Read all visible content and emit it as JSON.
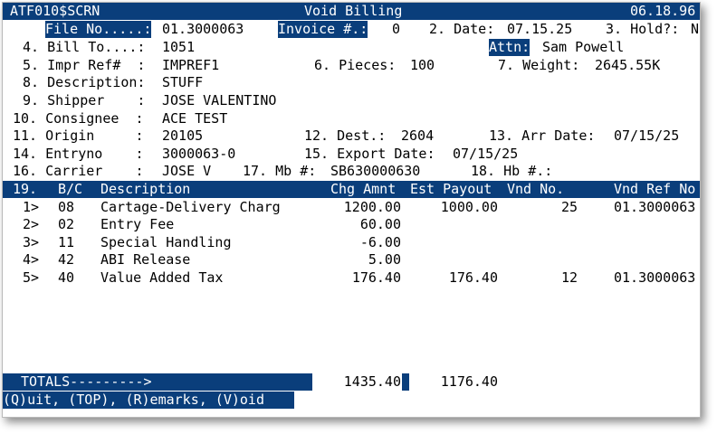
{
  "header": {
    "program": "ATF010$SCRN",
    "title": "Void Billing",
    "date": "06.18.96"
  },
  "fields": {
    "file_no_label": "File No.....:",
    "file_no": "01.3000063",
    "invoice_label": "Invoice #.:",
    "invoice": "0",
    "date_label": "2. Date:",
    "date": "07.15.25",
    "hold_label": "3. Hold?:",
    "hold": "N",
    "bill_to_label": "4. Bill To....:",
    "bill_to": "1051",
    "attn_label": "Attn:",
    "attn": "Sam Powell",
    "impr_ref_label": "5. Impr Ref#  :",
    "impr_ref": "IMPREF1",
    "pieces_label": "6. Pieces:",
    "pieces": "100",
    "weight_label": "7. Weight:",
    "weight": "2645.55K",
    "description_label": "8. Description:",
    "description": "STUFF",
    "shipper_label": "9. Shipper    :",
    "shipper": "JOSE VALENTINO",
    "consignee_label": "10. Consignee  :",
    "consignee": "ACE TEST",
    "origin_label": "11. Origin     :",
    "origin": "20105",
    "dest_label": "12. Dest.:",
    "dest": "2604",
    "arr_date_label": "13. Arr Date:",
    "arr_date": "07/15/25",
    "entryno_label": "14. Entryno    :",
    "entryno": "3000063-0",
    "export_date_label": "15. Export Date:",
    "export_date": "07/15/25",
    "carrier_label": "16. Carrier    :",
    "carrier": "JOSE V",
    "mb_label": "17. Mb #:",
    "mb": "SB630000630",
    "hb_label": "18. Hb #.:",
    "hb": ""
  },
  "table": {
    "columns": {
      "num": "19.",
      "bc": "B/C",
      "description": "Description",
      "chg_amnt": "Chg Amnt",
      "est_payout": "Est Payout",
      "vnd_no": "Vnd No.",
      "vnd_ref_no": "Vnd Ref No"
    },
    "rows": [
      {
        "num": "1>",
        "bc": "08",
        "description": "Cartage-Delivery Charg",
        "chg_amnt": "1200.00",
        "est_payout": "1000.00",
        "vnd_no": "25",
        "vnd_ref_no": "01.3000063"
      },
      {
        "num": "2>",
        "bc": "02",
        "description": "Entry Fee",
        "chg_amnt": "60.00",
        "est_payout": "",
        "vnd_no": "",
        "vnd_ref_no": ""
      },
      {
        "num": "3>",
        "bc": "11",
        "description": "Special Handling",
        "chg_amnt": "-6.00",
        "est_payout": "",
        "vnd_no": "",
        "vnd_ref_no": ""
      },
      {
        "num": "4>",
        "bc": "42",
        "description": "ABI Release",
        "chg_amnt": "5.00",
        "est_payout": "",
        "vnd_no": "",
        "vnd_ref_no": ""
      },
      {
        "num": "5>",
        "bc": "40",
        "description": "Value Added Tax",
        "chg_amnt": "176.40",
        "est_payout": "176.40",
        "vnd_no": "12",
        "vnd_ref_no": "01.3000063"
      }
    ]
  },
  "totals": {
    "label": "TOTALS--------->",
    "chg_amnt": "1435.40",
    "est_payout": "1176.40"
  },
  "commands": "(Q)uit, (TOP), (R)emarks, (V)oid",
  "colors": {
    "highlight": "#0a3e7b",
    "text": "#000000",
    "background": "#ffffff"
  }
}
